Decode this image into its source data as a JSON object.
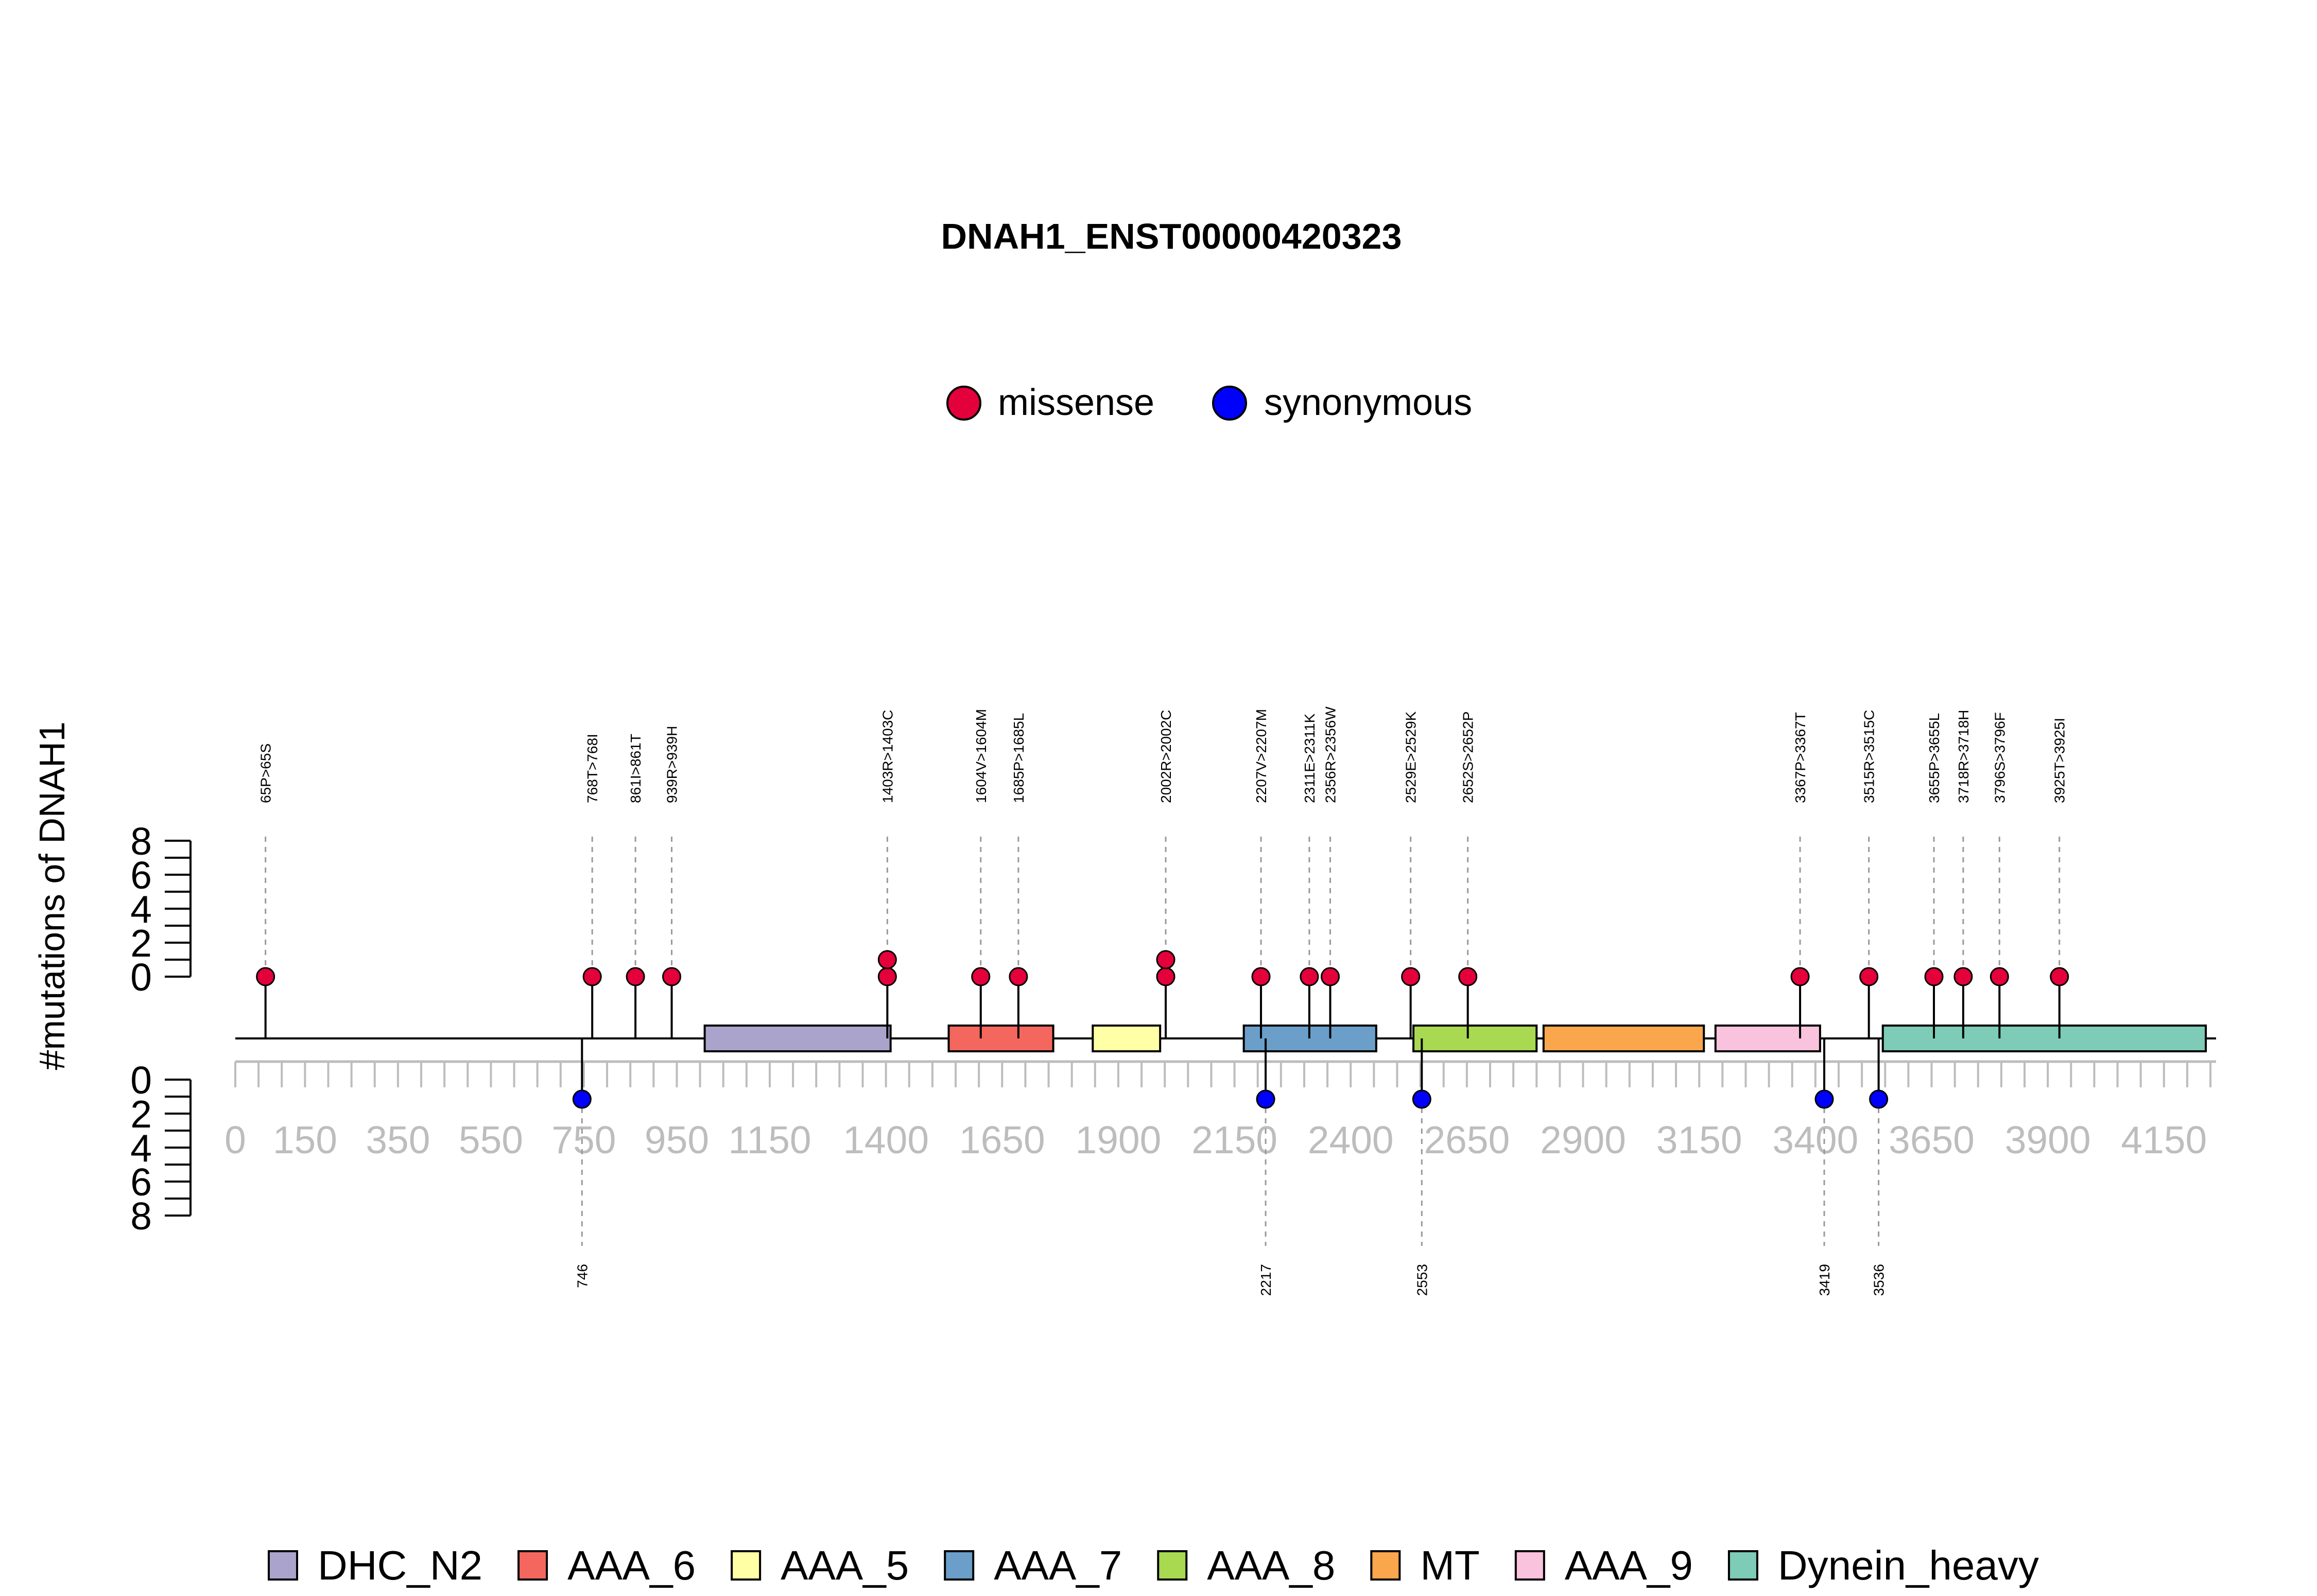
{
  "chart_data": {
    "type": "lollipop",
    "title": "DNAH1_ENST00000420323",
    "ylabel": "#mutations of DNAH1",
    "legend_top": [
      {
        "name": "missense",
        "color": "#E4003B"
      },
      {
        "name": "synonymous",
        "color": "#0000FF"
      }
    ],
    "x_ticks": [
      0,
      150,
      350,
      550,
      750,
      950,
      1150,
      1400,
      1650,
      1900,
      2150,
      2400,
      2650,
      2900,
      3150,
      3400,
      3650,
      3900,
      4150
    ],
    "y_ticks_top": [
      0,
      2,
      4,
      6,
      8
    ],
    "y_ticks_bottom": [
      0,
      2,
      4,
      6,
      8
    ],
    "protein_length": 4265,
    "domains": [
      {
        "name": "DHC_N2",
        "start": 1010,
        "end": 1410,
        "color": "#AAA4CC"
      },
      {
        "name": "AAA_6",
        "start": 1535,
        "end": 1760,
        "color": "#F4675E"
      },
      {
        "name": "AAA_5",
        "start": 1845,
        "end": 1990,
        "color": "#FFFFA5"
      },
      {
        "name": "AAA_7",
        "start": 2170,
        "end": 2455,
        "color": "#6B9EC8"
      },
      {
        "name": "AAA_8",
        "start": 2535,
        "end": 2800,
        "color": "#A8D951"
      },
      {
        "name": "MT",
        "start": 2815,
        "end": 3160,
        "color": "#F9A64D"
      },
      {
        "name": "AAA_9",
        "start": 3185,
        "end": 3410,
        "color": "#F9C2DD"
      },
      {
        "name": "Dynein_heavy",
        "start": 3545,
        "end": 4240,
        "color": "#7ECBB7"
      }
    ],
    "mutations_top": [
      {
        "pos": 65,
        "label": "65P>65S",
        "count": 1
      },
      {
        "pos": 768,
        "label": "768T>768I",
        "count": 1
      },
      {
        "pos": 861,
        "label": "861I>861T",
        "count": 1
      },
      {
        "pos": 939,
        "label": "939R>939H",
        "count": 1
      },
      {
        "pos": 1403,
        "label": "1403R>1403C",
        "count": 2
      },
      {
        "pos": 1604,
        "label": "1604V>1604M",
        "count": 1
      },
      {
        "pos": 1685,
        "label": "1685P>1685L",
        "count": 1
      },
      {
        "pos": 2002,
        "label": "2002R>2002C",
        "count": 2
      },
      {
        "pos": 2207,
        "label": "2207V>2207M",
        "count": 1
      },
      {
        "pos": 2311,
        "label": "2311E>2311K",
        "count": 1
      },
      {
        "pos": 2356,
        "label": "2356R>2356W",
        "count": 1
      },
      {
        "pos": 2529,
        "label": "2529E>2529K",
        "count": 1
      },
      {
        "pos": 2652,
        "label": "2652S>2652P",
        "count": 1
      },
      {
        "pos": 3367,
        "label": "3367P>3367T",
        "count": 1
      },
      {
        "pos": 3515,
        "label": "3515R>3515C",
        "count": 1
      },
      {
        "pos": 3655,
        "label": "3655P>3655L",
        "count": 1
      },
      {
        "pos": 3718,
        "label": "3718R>3718H",
        "count": 1
      },
      {
        "pos": 3796,
        "label": "3796S>3796F",
        "count": 1
      },
      {
        "pos": 3925,
        "label": "3925T>3925I",
        "count": 1
      }
    ],
    "mutations_bottom": [
      {
        "pos": 746,
        "label": "746",
        "count": 1
      },
      {
        "pos": 2217,
        "label": "2217",
        "count": 1
      },
      {
        "pos": 2553,
        "label": "2553",
        "count": 1
      },
      {
        "pos": 3419,
        "label": "3419",
        "count": 1
      },
      {
        "pos": 3536,
        "label": "3536",
        "count": 1
      }
    ]
  }
}
